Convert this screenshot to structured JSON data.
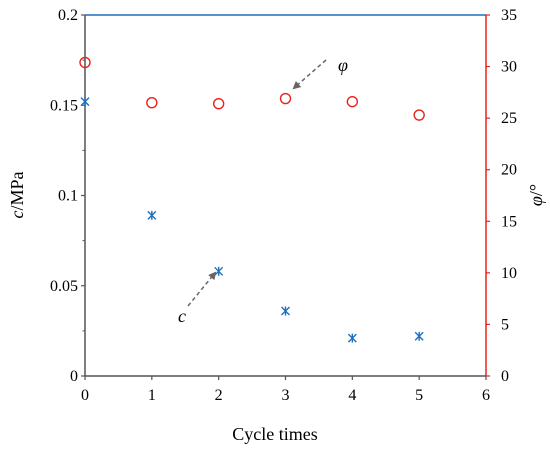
{
  "chart_data": {
    "type": "scatter",
    "x": [
      0,
      1,
      2,
      3,
      4,
      5
    ],
    "xlabel": "Cycle times",
    "xlim": [
      0,
      6
    ],
    "xticks": [
      "0",
      "1",
      "2",
      "3",
      "4",
      "5",
      "6"
    ],
    "ylabel_left": {
      "symbol": "c",
      "unit": "/MPa"
    },
    "ylim_left": [
      0,
      0.2
    ],
    "yticks_left": [
      "0",
      "0.05",
      "0.1",
      "0.15",
      "0.2"
    ],
    "ylabel_right": {
      "symbol": "φ",
      "unit": "/°"
    },
    "ylim_right": [
      0,
      35
    ],
    "yticks_right": [
      "0",
      "5",
      "10",
      "15",
      "20",
      "25",
      "30",
      "35"
    ],
    "series": [
      {
        "name": "c",
        "axis": "left",
        "marker": "asterisk",
        "color": "#1f6fbf",
        "values": [
          0.152,
          0.089,
          0.058,
          0.036,
          0.021,
          0.022
        ]
      },
      {
        "name": "φ",
        "axis": "right",
        "marker": "circle-open",
        "color": "#e8231f",
        "values": [
          30.4,
          26.5,
          26.4,
          26.9,
          26.6,
          25.3
        ]
      }
    ],
    "annotations": [
      {
        "text": "φ",
        "points_to_series": "φ"
      },
      {
        "text": "c",
        "points_to_series": "c"
      }
    ],
    "grid": false,
    "colors": {
      "left_axis": "#555555",
      "right_axis": "#e8231f",
      "top_border": "#1f6fbf",
      "arrow": "#666666"
    }
  }
}
